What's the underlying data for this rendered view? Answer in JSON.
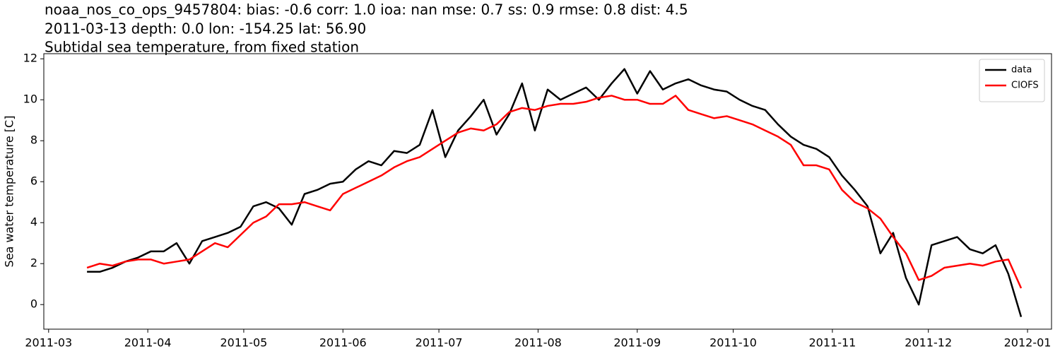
{
  "chart_data": {
    "type": "line",
    "title_lines": [
      "noaa_nos_co_ops_9457804: bias: -0.6  corr: 1.0  ioa: nan  mse: 0.7  ss: 0.9  rmse: 0.8  dist: 4.5",
      "2011-03-13 depth: 0.0 lon: -154.25 lat: 56.90",
      "Subtidal sea temperature, from fixed station"
    ],
    "ylabel": "Sea water temperature [C]",
    "x": [
      12,
      16,
      20,
      24,
      28,
      32,
      36,
      40,
      44,
      48,
      52,
      56,
      60,
      64,
      68,
      72,
      76,
      80,
      84,
      88,
      92,
      96,
      100,
      104,
      108,
      112,
      116,
      120,
      124,
      128,
      132,
      136,
      140,
      144,
      148,
      152,
      156,
      160,
      164,
      168,
      172,
      176,
      180,
      184,
      188,
      192,
      196,
      200,
      204,
      208,
      212,
      216,
      220,
      224,
      228,
      232,
      236,
      240,
      244,
      248,
      252,
      256,
      260,
      264,
      268,
      272,
      276,
      280,
      284,
      288,
      292,
      296,
      300,
      304
    ],
    "series": [
      {
        "name": "data",
        "color": "#000000",
        "values": [
          1.6,
          1.6,
          1.8,
          2.1,
          2.3,
          2.6,
          2.6,
          3.0,
          2.0,
          3.1,
          3.3,
          3.5,
          3.8,
          4.8,
          5.0,
          4.7,
          3.9,
          5.4,
          5.6,
          5.9,
          6.0,
          6.6,
          7.0,
          6.8,
          7.5,
          7.4,
          7.8,
          9.5,
          7.2,
          8.5,
          9.2,
          10.0,
          8.3,
          9.3,
          10.8,
          8.5,
          10.5,
          10.0,
          10.3,
          10.6,
          10.0,
          10.8,
          11.5,
          10.3,
          11.4,
          10.5,
          10.8,
          11.0,
          10.7,
          10.5,
          10.4,
          10.0,
          9.7,
          9.5,
          8.8,
          8.2,
          7.8,
          7.6,
          7.2,
          6.3,
          5.6,
          4.8,
          2.5,
          3.5,
          1.3,
          0.0,
          2.9,
          3.1,
          3.3,
          2.7,
          2.5,
          2.9,
          1.5,
          -0.6
        ]
      },
      {
        "name": "CIOFS",
        "color": "#ff0000",
        "values": [
          1.8,
          2.0,
          1.9,
          2.1,
          2.2,
          2.2,
          2.0,
          2.1,
          2.2,
          2.6,
          3.0,
          2.8,
          3.4,
          4.0,
          4.3,
          4.9,
          4.9,
          5.0,
          4.8,
          4.6,
          5.4,
          5.7,
          6.0,
          6.3,
          6.7,
          7.0,
          7.2,
          7.6,
          8.0,
          8.4,
          8.6,
          8.5,
          8.8,
          9.4,
          9.6,
          9.5,
          9.7,
          9.8,
          9.8,
          9.9,
          10.1,
          10.2,
          10.0,
          10.0,
          9.8,
          9.8,
          10.2,
          9.5,
          9.3,
          9.1,
          9.2,
          9.0,
          8.8,
          8.5,
          8.2,
          7.8,
          6.8,
          6.8,
          6.6,
          5.6,
          5.0,
          4.7,
          4.2,
          3.3,
          2.5,
          1.2,
          1.4,
          1.8,
          1.9,
          2.0,
          1.9,
          2.1,
          2.2,
          0.8
        ]
      }
    ],
    "xlim": [
      -1.5,
      313.5
    ],
    "xticks": [
      {
        "value": 0,
        "label": "2011-03"
      },
      {
        "value": 31,
        "label": "2011-04"
      },
      {
        "value": 61,
        "label": "2011-05"
      },
      {
        "value": 92,
        "label": "2011-06"
      },
      {
        "value": 122,
        "label": "2011-07"
      },
      {
        "value": 153,
        "label": "2011-08"
      },
      {
        "value": 184,
        "label": "2011-09"
      },
      {
        "value": 214,
        "label": "2011-10"
      },
      {
        "value": 245,
        "label": "2011-11"
      },
      {
        "value": 275,
        "label": "2011-12"
      },
      {
        "value": 306,
        "label": "2012-01"
      }
    ],
    "ylim": [
      -1.2,
      12.25
    ],
    "yticks": [
      0,
      2,
      4,
      6,
      8,
      10,
      12
    ],
    "legend": "upper right"
  }
}
